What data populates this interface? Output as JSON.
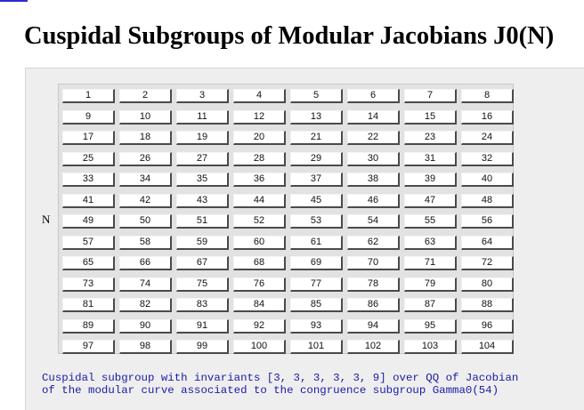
{
  "page": {
    "title": "Cuspidal Subgroups of Modular Jacobians J0(N)",
    "row_label": "N"
  },
  "buttons": [
    "1",
    "2",
    "3",
    "4",
    "5",
    "6",
    "7",
    "8",
    "9",
    "10",
    "11",
    "12",
    "13",
    "14",
    "15",
    "16",
    "17",
    "18",
    "19",
    "20",
    "21",
    "22",
    "23",
    "24",
    "25",
    "26",
    "27",
    "28",
    "29",
    "30",
    "31",
    "32",
    "33",
    "34",
    "35",
    "36",
    "37",
    "38",
    "39",
    "40",
    "41",
    "42",
    "43",
    "44",
    "45",
    "46",
    "47",
    "48",
    "49",
    "50",
    "51",
    "52",
    "53",
    "54",
    "55",
    "56",
    "57",
    "58",
    "59",
    "60",
    "61",
    "62",
    "63",
    "64",
    "65",
    "66",
    "67",
    "68",
    "69",
    "70",
    "71",
    "72",
    "73",
    "74",
    "75",
    "76",
    "77",
    "78",
    "79",
    "80",
    "81",
    "82",
    "83",
    "84",
    "85",
    "86",
    "87",
    "88",
    "89",
    "90",
    "91",
    "92",
    "93",
    "94",
    "95",
    "96",
    "97",
    "98",
    "99",
    "100",
    "101",
    "102",
    "103",
    "104"
  ],
  "result": {
    "line1": "Cuspidal subgroup with invariants [3, 3, 3, 3, 3, 9] over QQ of Jacobian",
    "line2": "of the modular curve associated to the congruence subgroup Gamma0(54)"
  },
  "colors": {
    "caption": "#1a1aa6",
    "panel": "#eeeeee"
  }
}
